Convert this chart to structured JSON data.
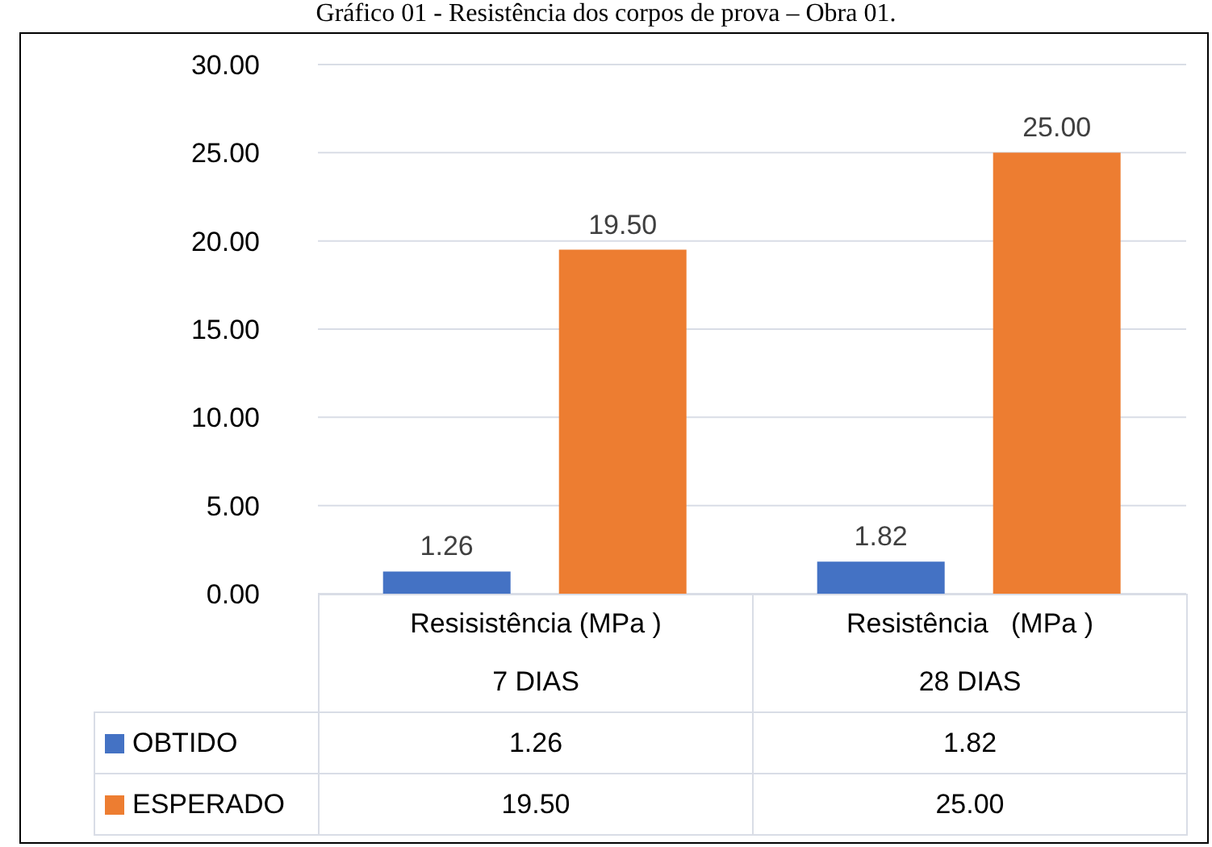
{
  "chart_data": {
    "type": "bar",
    "title": "Gráfico 01 - Resistência dos corpos de prova – Obra 01.",
    "categories": [
      "Resisistência (MPa )\n7 DIAS",
      "Resistência   (MPa )\n28 DIAS"
    ],
    "series": [
      {
        "name": "OBTIDO",
        "color": "#4472c4",
        "values": [
          1.26,
          1.82
        ],
        "value_labels": [
          "1.26",
          "1.82"
        ]
      },
      {
        "name": "ESPERADO",
        "color": "#ed7d31",
        "values": [
          19.5,
          25.0
        ],
        "value_labels": [
          "19.50",
          "25.00"
        ]
      }
    ],
    "ylim": [
      0,
      30
    ],
    "yticks": [
      {
        "value": 0,
        "label": "0.00"
      },
      {
        "value": 5,
        "label": "5.00"
      },
      {
        "value": 10,
        "label": "10.00"
      },
      {
        "value": 15,
        "label": "15.00"
      },
      {
        "value": 20,
        "label": "20.00"
      },
      {
        "value": 25,
        "label": "25.00"
      },
      {
        "value": 30,
        "label": "30.00"
      }
    ],
    "grid": "y",
    "legend": "bottom"
  }
}
